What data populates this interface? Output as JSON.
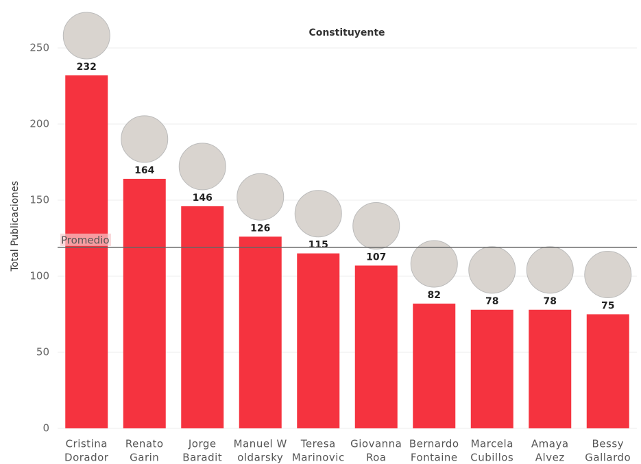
{
  "chart_data": {
    "type": "bar",
    "title": "Constituyente",
    "y_label": "Total Publicaciones",
    "categories": [
      [
        "Cristina",
        "Dorador"
      ],
      [
        "Renato",
        "Garin"
      ],
      [
        "Jorge",
        "Baradit"
      ],
      [
        "Manuel W",
        "oldarsky"
      ],
      [
        "Teresa",
        "Marinovic"
      ],
      [
        "Giovanna",
        "Roa"
      ],
      [
        "Bernardo",
        "Fontaine"
      ],
      [
        "Marcela",
        "Cubillos"
      ],
      [
        "Amaya",
        "Alvez"
      ],
      [
        "Bessy",
        "Gallardo"
      ]
    ],
    "values": [
      232,
      164,
      146,
      126,
      115,
      107,
      82,
      78,
      78,
      75
    ],
    "color": "#f5333f",
    "ylim": [
      0,
      250
    ],
    "yticks": [
      0,
      50,
      100,
      150,
      200,
      250
    ],
    "grid": true,
    "average": {
      "label": "Promedio",
      "value": 119
    }
  }
}
